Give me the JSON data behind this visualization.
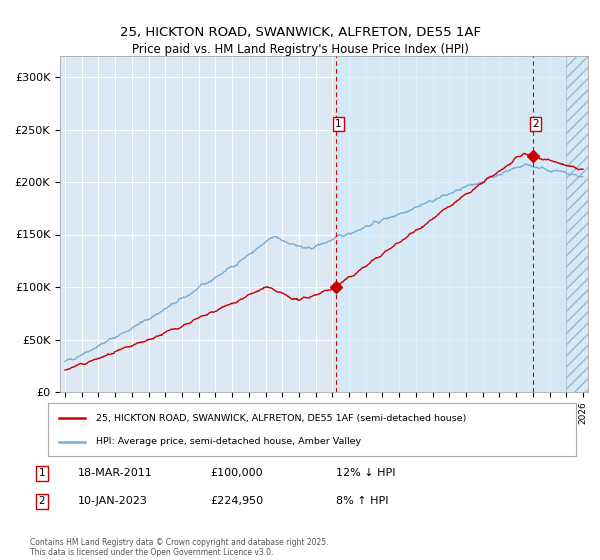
{
  "title_line1": "25, HICKTON ROAD, SWANWICK, ALFRETON, DE55 1AF",
  "title_line2": "Price paid vs. HM Land Registry's House Price Index (HPI)",
  "ylim": [
    0,
    320000
  ],
  "yticks": [
    0,
    50000,
    100000,
    150000,
    200000,
    250000,
    300000
  ],
  "ytick_labels": [
    "£0",
    "£50K",
    "£100K",
    "£150K",
    "£200K",
    "£250K",
    "£300K"
  ],
  "xlim_start": 1994.7,
  "xlim_end": 2026.3,
  "xticks": [
    1995,
    1996,
    1997,
    1998,
    1999,
    2000,
    2001,
    2002,
    2003,
    2004,
    2005,
    2006,
    2007,
    2008,
    2009,
    2010,
    2011,
    2012,
    2013,
    2014,
    2015,
    2016,
    2017,
    2018,
    2019,
    2020,
    2021,
    2022,
    2023,
    2024,
    2025,
    2026
  ],
  "hpi_color": "#7aadd4",
  "price_color": "#cc0000",
  "marker1_date": 2011.21,
  "marker1_price": 100000,
  "marker2_date": 2023.03,
  "marker2_price": 224950,
  "legend_label_red": "25, HICKTON ROAD, SWANWICK, ALFRETON, DE55 1AF (semi-detached house)",
  "legend_label_blue": "HPI: Average price, semi-detached house, Amber Valley",
  "annotation1": "1",
  "annotation2": "2",
  "copyright_text": "Contains HM Land Registry data © Crown copyright and database right 2025.\nThis data is licensed under the Open Government Licence v3.0.",
  "bg_color": "#dce9f5",
  "bg_color_after": "#cce0f0",
  "plot_bg": "#dce9f5"
}
